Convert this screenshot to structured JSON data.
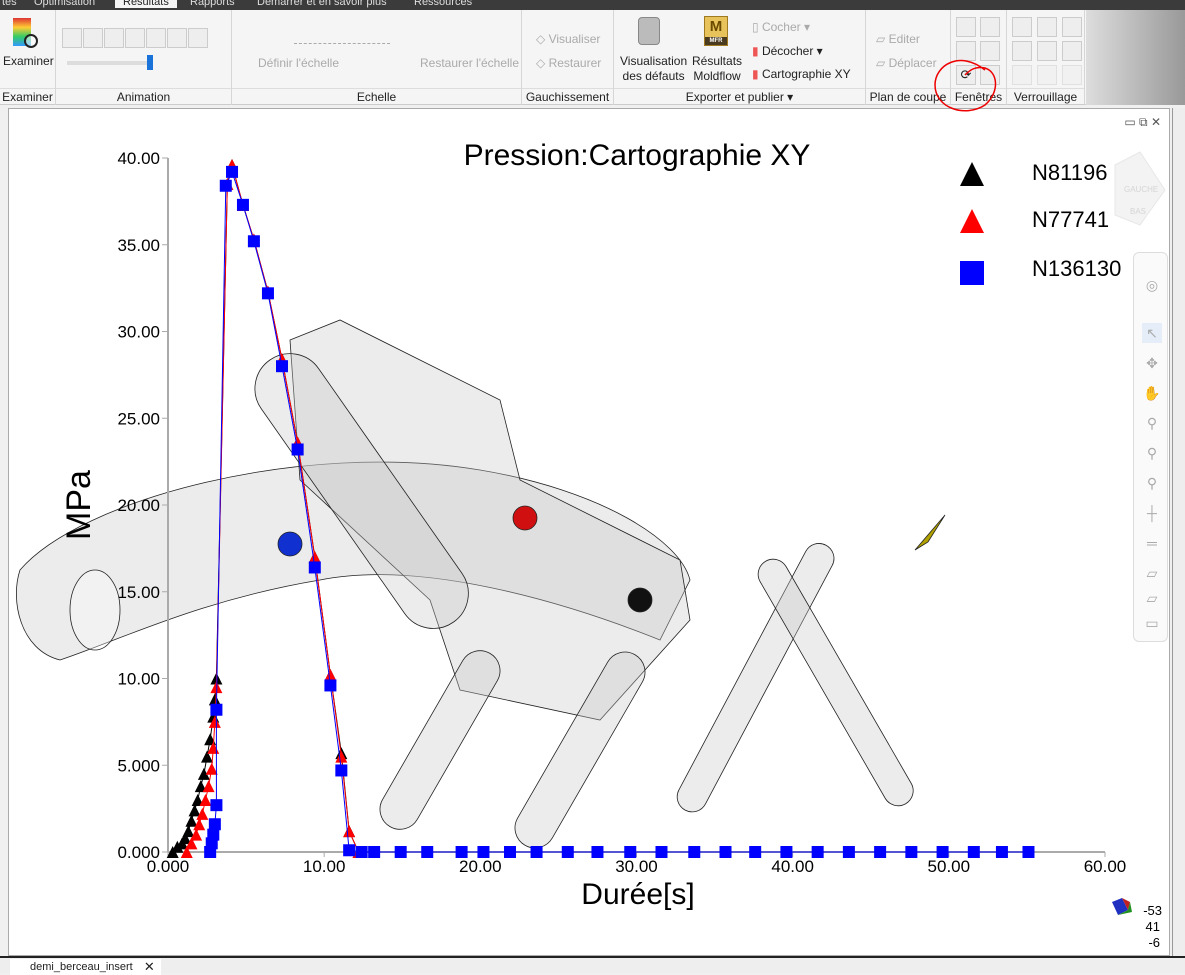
{
  "menu_tabs": [
    "tes",
    "Optimisation",
    "Résultats",
    "Rapports",
    "Démarrer et en savoir plus",
    "Ressources"
  ],
  "ribbon": {
    "examiner": {
      "button": "Examiner",
      "group": "Examiner"
    },
    "animation": {
      "group": "Animation",
      "slider_value": 0.95
    },
    "echelle": {
      "define": "Définir l'échelle",
      "restore": "Restaurer l'échelle",
      "group": "Echelle"
    },
    "gauchissement": {
      "visualiser": "Visualiser",
      "restaurer": "Restaurer",
      "group": "Gauchissement"
    },
    "exporter": {
      "visualisation": [
        "Visualisation",
        "des défauts"
      ],
      "resultats": [
        "Résultats",
        "Moldflow"
      ],
      "cocher": "Cocher",
      "decocher": "Décocher",
      "carto": "Cartographie XY",
      "group": "Exporter et publier",
      "mfr": "MFR"
    },
    "plan": {
      "editer": "Editer",
      "deplacer": "Déplacer",
      "group": "Plan de coupe"
    },
    "fenetres": {
      "group": "Fenêtres"
    },
    "verrouillage": {
      "group": "Verrouillage"
    }
  },
  "viewport": {
    "triad": [
      "-53",
      "41",
      "-6"
    ],
    "navcube_labels": [
      "GAUCHE",
      "BAS"
    ]
  },
  "document_tab": "demi_berceau_insert",
  "chart_data": {
    "type": "scatter",
    "title": "Pression:Cartographie XY",
    "xlabel": "Durée[s]",
    "ylabel": "MPa",
    "xlim": [
      0,
      60
    ],
    "ylim": [
      0,
      40
    ],
    "xticks": [
      "0.000",
      "10.00",
      "20.00",
      "30.00",
      "40.00",
      "50.00",
      "60.00"
    ],
    "yticks": [
      "0.000",
      "5.000",
      "10.00",
      "15.00",
      "20.00",
      "25.00",
      "30.00",
      "35.00",
      "40.00"
    ],
    "legend": "top-right",
    "series": [
      {
        "name": "N81196",
        "color": "#000000",
        "marker": "triangle",
        "x": [
          0.3,
          0.6,
          0.9,
          1.1,
          1.3,
          1.5,
          1.7,
          1.9,
          2.1,
          2.3,
          2.5,
          2.7,
          2.9,
          3.0,
          3.1,
          3.8,
          4.1,
          4.8,
          5.5,
          6.4,
          7.3,
          8.3,
          9.4,
          10.4,
          11.1,
          11.6,
          12.2
        ],
        "y": [
          0,
          0.3,
          0.5,
          0.8,
          1.2,
          1.8,
          2.4,
          3.0,
          3.8,
          4.5,
          5.5,
          6.5,
          7.8,
          8.8,
          10.0,
          38.5,
          39.6,
          37.3,
          35.3,
          32.3,
          28.4,
          23.6,
          17.0,
          10.2,
          5.7,
          1.2,
          0
        ]
      },
      {
        "name": "N77741",
        "color": "#ff0000",
        "marker": "triangle",
        "x": [
          1.2,
          1.5,
          1.8,
          2.0,
          2.2,
          2.4,
          2.6,
          2.8,
          2.9,
          3.0,
          3.1,
          3.8,
          4.1,
          4.8,
          5.5,
          6.4,
          7.3,
          8.3,
          9.4,
          10.4,
          11.1,
          11.6,
          12.2
        ],
        "y": [
          0,
          0.5,
          1.0,
          1.6,
          2.2,
          3.0,
          3.8,
          4.8,
          6.0,
          7.5,
          9.5,
          38.5,
          39.6,
          37.3,
          35.3,
          32.3,
          28.4,
          23.6,
          17.0,
          10.2,
          5.5,
          1.2,
          0
        ]
      },
      {
        "name": "N136130",
        "color": "#0000ff",
        "marker": "square",
        "x": [
          2.7,
          2.8,
          2.9,
          3.0,
          3.1,
          3.1,
          3.7,
          4.1,
          4.8,
          5.5,
          6.4,
          7.3,
          8.3,
          9.4,
          10.4,
          11.1,
          11.6,
          12.4,
          13.2,
          14.9,
          16.6,
          18.8,
          20.2,
          21.9,
          23.6,
          25.6,
          27.5,
          29.6,
          31.6,
          33.7,
          35.7,
          37.6,
          39.6,
          41.6,
          43.6,
          45.6,
          47.6,
          49.6,
          51.6,
          53.4,
          55.1
        ],
        "y": [
          0,
          0.5,
          1.0,
          1.6,
          2.7,
          8.2,
          38.4,
          39.2,
          37.3,
          35.2,
          32.2,
          28.0,
          23.2,
          16.4,
          9.6,
          4.7,
          0.1,
          0,
          0,
          0,
          0,
          0,
          0,
          0,
          0,
          0,
          0,
          0,
          0,
          0,
          0,
          0,
          0,
          0,
          0,
          0,
          0,
          0,
          0,
          0,
          0
        ]
      }
    ]
  }
}
